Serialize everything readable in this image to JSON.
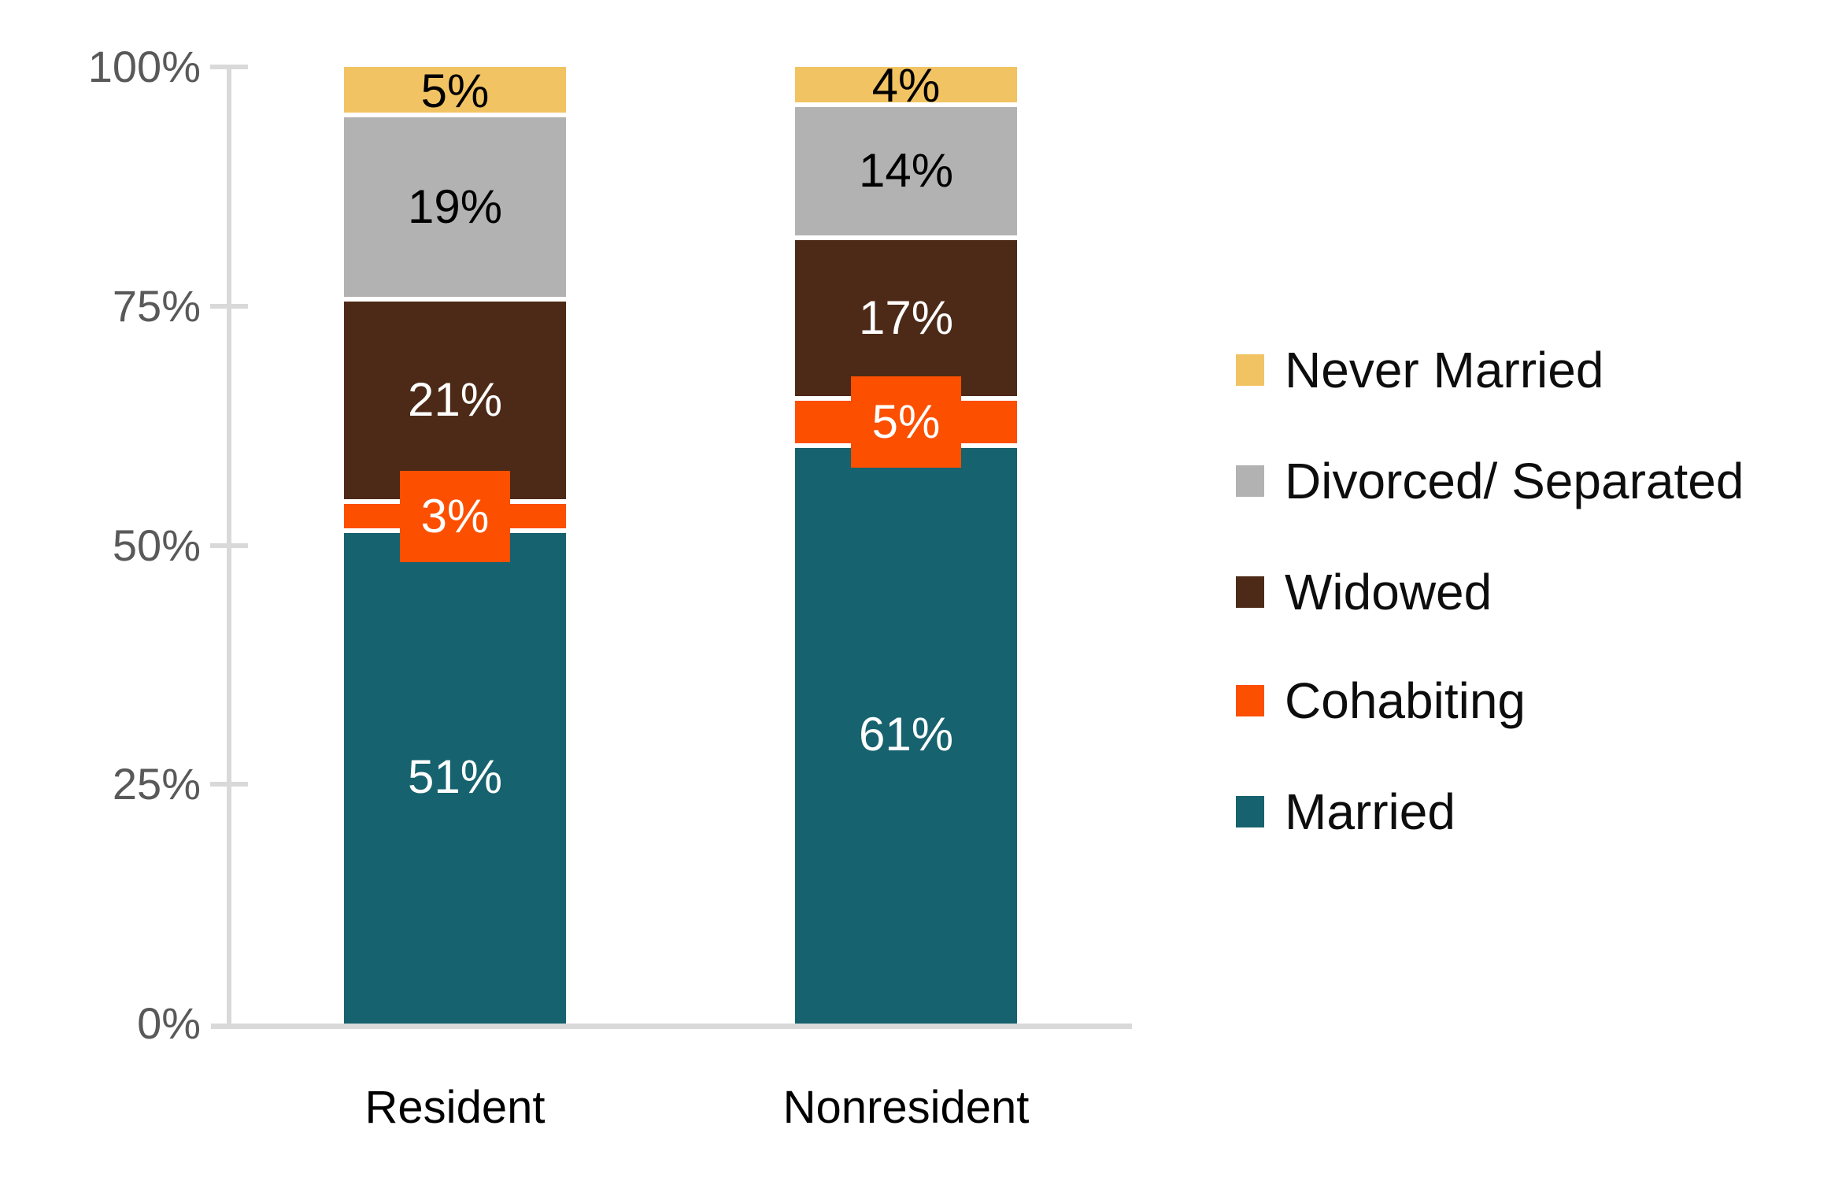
{
  "chart_data": {
    "type": "bar",
    "stacked": true,
    "orientation": "vertical",
    "title": "",
    "xlabel": "",
    "ylabel": "",
    "categories": [
      "Resident",
      "Nonresident"
    ],
    "series": [
      {
        "name": "Married",
        "color": "#16626E",
        "label_color": "#FFFFFF",
        "values": [
          51,
          61
        ],
        "labels": [
          "51%",
          "61%"
        ],
        "callout": false
      },
      {
        "name": "Cohabiting",
        "color": "#FC4F00",
        "label_color": "#FFFFFF",
        "values": [
          3,
          5
        ],
        "labels": [
          "3%",
          "5%"
        ],
        "callout": true
      },
      {
        "name": "Widowed",
        "color": "#4D2A17",
        "label_color": "#FFFFFF",
        "values": [
          21,
          17
        ],
        "labels": [
          "21%",
          "17%"
        ],
        "callout": false
      },
      {
        "name": "Divorced/ Separated",
        "color": "#B2B2B2",
        "label_color": "#000000",
        "values": [
          19,
          14
        ],
        "labels": [
          "19%",
          "14%"
        ],
        "callout": false
      },
      {
        "name": "Never Married",
        "color": "#F2C363",
        "label_color": "#000000",
        "values": [
          5,
          4
        ],
        "labels": [
          "5%",
          "4%"
        ],
        "callout": false
      }
    ],
    "y_ticks": [
      {
        "value": 0,
        "label": "0%"
      },
      {
        "value": 25,
        "label": "25%"
      },
      {
        "value": 50,
        "label": "50%"
      },
      {
        "value": 75,
        "label": "75%"
      },
      {
        "value": 100,
        "label": "100%"
      }
    ],
    "ylim": [
      0,
      100
    ],
    "grid": false,
    "legend_position": "right",
    "legend_order": [
      "Never Married",
      "Divorced/ Separated",
      "Widowed",
      "Cohabiting",
      "Married"
    ],
    "colors": {
      "axis": "#D9D9D9",
      "tick_label": "#595959",
      "category_label": "#000000",
      "legend_label": "#0D0D0D",
      "background": "#FFFFFF"
    }
  }
}
